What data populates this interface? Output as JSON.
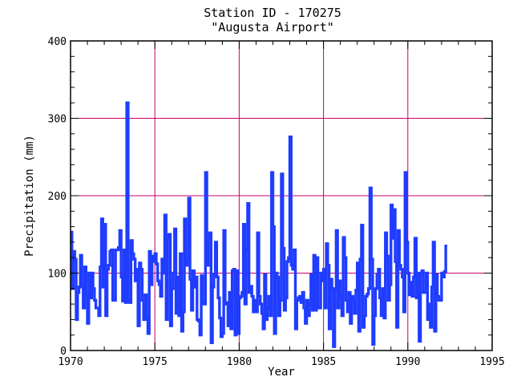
{
  "chart_data": {
    "type": "line",
    "title": "Station ID - 170275",
    "subtitle": "\"Augusta Airport\"",
    "xlabel": "Year",
    "ylabel": "Precipitation (mm)",
    "xlim": [
      1970,
      1995
    ],
    "ylim": [
      0,
      400
    ],
    "xticks": [
      "1970",
      "1975",
      "1980",
      "1985",
      "1990",
      "1995"
    ],
    "yticks": [
      "0",
      "100",
      "200",
      "300",
      "400"
    ],
    "grid": true,
    "colors": {
      "series": "#1f3cff",
      "grid": "#c8006e",
      "axis": "#000000"
    },
    "series": [
      {
        "x_start": 1970.0,
        "x_step_months": 1,
        "values": [
          153,
          80,
          128,
          118,
          40,
          75,
          82,
          123,
          85,
          55,
          108,
          70,
          35,
          100,
          68,
          100,
          80,
          65,
          55,
          55,
          45,
          108,
          170,
          82,
          163,
          45,
          105,
          110,
          128,
          130,
          65,
          65,
          130,
          130,
          133,
          155,
          95,
          64,
          130,
          62,
          320,
          65,
          62,
          142,
          125,
          118,
          90,
          105,
          32,
          113,
          105,
          65,
          40,
          72,
          42,
          22,
          128,
          85,
          122,
          115,
          125,
          112,
          90,
          85,
          70,
          118,
          100,
          175,
          40,
          145,
          150,
          32,
          80,
          100,
          157,
          48,
          95,
          45,
          125,
          25,
          50,
          170,
          110,
          118,
          197,
          92,
          52,
          103,
          82,
          95,
          40,
          38,
          20,
          97,
          62,
          60,
          230,
          110,
          148,
          152,
          10,
          82,
          98,
          140,
          95,
          68,
          42,
          18,
          22,
          155,
          60,
          62,
          32,
          75,
          28,
          103,
          105,
          20,
          103,
          22,
          68,
          70,
          75,
          163,
          60,
          130,
          190,
          75,
          83,
          70,
          50,
          65,
          50,
          152,
          70,
          60,
          48,
          28,
          98,
          40,
          55,
          70,
          45,
          230,
          160,
          22,
          100,
          95,
          45,
          65,
          228,
          132,
          52,
          68,
          115,
          120,
          276,
          110,
          105,
          130,
          28,
          65,
          68,
          70,
          62,
          75,
          55,
          35,
          65,
          45,
          60,
          98,
          52,
          123,
          52,
          120,
          55,
          55,
          100,
          90,
          105,
          55,
          138,
          110,
          28,
          92,
          80,
          5,
          80,
          155,
          55,
          90,
          70,
          45,
          146,
          120,
          65,
          50,
          75,
          35,
          70,
          65,
          48,
          78,
          113,
          25,
          118,
          162,
          30,
          45,
          70,
          73,
          80,
          210,
          118,
          8,
          45,
          80,
          98,
          105,
          68,
          45,
          80,
          42,
          152,
          122,
          65,
          85,
          188,
          145,
          182,
          115,
          30,
          155,
          110,
          105,
          95,
          50,
          230,
          140,
          100,
          72,
          88,
          70,
          95,
          145,
          68,
          100,
          12,
          100,
          103,
          75,
          75,
          100,
          40,
          60,
          30,
          82,
          140,
          25,
          98,
          70,
          65,
          65,
          100,
          95,
          102,
          135
        ]
      }
    ]
  }
}
